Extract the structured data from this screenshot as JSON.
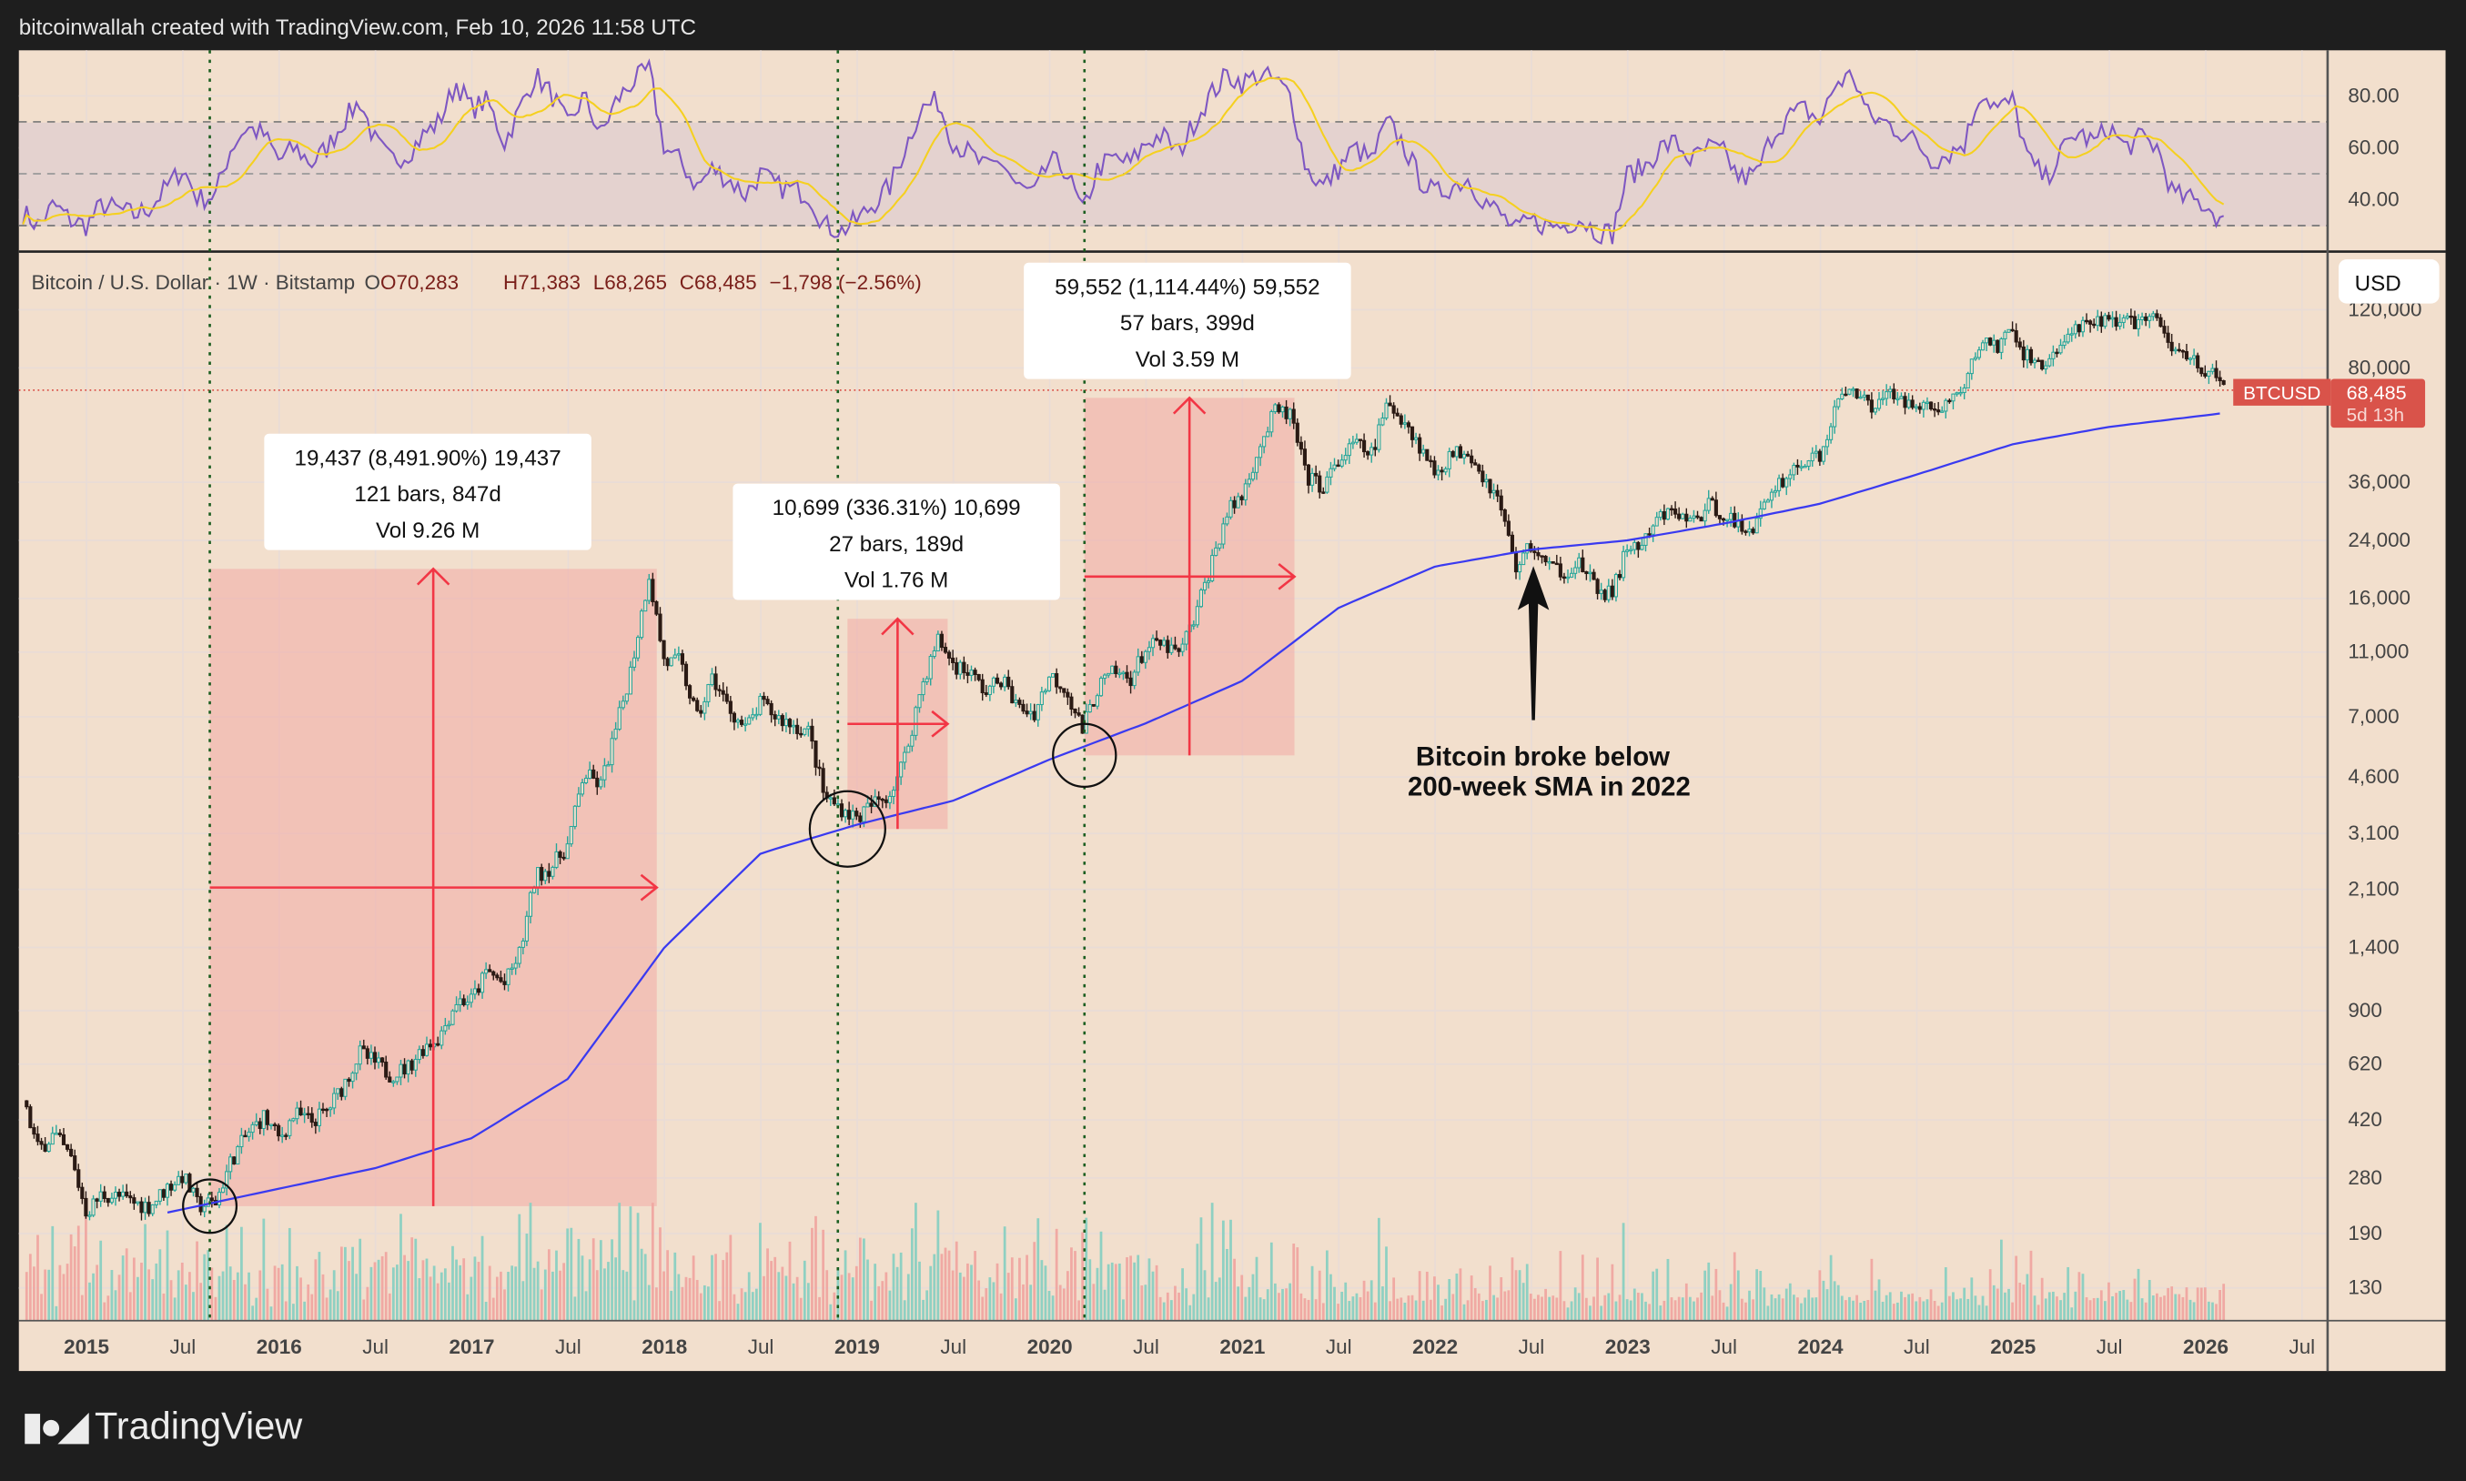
{
  "header": {
    "credit": "bitcoinwallah created with TradingView.com, Feb 10, 2026 11:58 UTC"
  },
  "legend": {
    "symbol": "Bitcoin / U.S. Dollar · 1W · Bitstamp",
    "open": "O70,283",
    "high": "H71,383",
    "low": "L68,265",
    "close": "C68,485",
    "change": "−1,798 (−2.56%)"
  },
  "price_axis": {
    "currency": "USD",
    "ticks": [
      "120,000",
      "80,000",
      "36,000",
      "24,000",
      "16,000",
      "11,000",
      "7,000",
      "4,600",
      "3,100",
      "2,100",
      "1,400",
      "900",
      "620",
      "420",
      "280",
      "190",
      "130"
    ]
  },
  "rsi_axis": {
    "ticks": [
      "80.00",
      "60.00",
      "40.00"
    ]
  },
  "last_price": {
    "ticker": "BTCUSD",
    "price": "68,485",
    "countdown": "5d 13h",
    "color": "#d9534a"
  },
  "time_axis": {
    "labels": [
      {
        "t": 2015,
        "text": "2015",
        "year": true
      },
      {
        "t": 2015.5,
        "text": "Jul"
      },
      {
        "t": 2016,
        "text": "2016",
        "year": true
      },
      {
        "t": 2016.5,
        "text": "Jul"
      },
      {
        "t": 2017,
        "text": "2017",
        "year": true
      },
      {
        "t": 2017.5,
        "text": "Jul"
      },
      {
        "t": 2018,
        "text": "2018",
        "year": true
      },
      {
        "t": 2018.5,
        "text": "Jul"
      },
      {
        "t": 2019,
        "text": "2019",
        "year": true
      },
      {
        "t": 2019.5,
        "text": "Jul"
      },
      {
        "t": 2020,
        "text": "2020",
        "year": true
      },
      {
        "t": 2020.5,
        "text": "Jul"
      },
      {
        "t": 2021,
        "text": "2021",
        "year": true
      },
      {
        "t": 2021.5,
        "text": "Jul"
      },
      {
        "t": 2022,
        "text": "2022",
        "year": true
      },
      {
        "t": 2022.5,
        "text": "Jul"
      },
      {
        "t": 2023,
        "text": "2023",
        "year": true
      },
      {
        "t": 2023.5,
        "text": "Jul"
      },
      {
        "t": 2024,
        "text": "2024",
        "year": true
      },
      {
        "t": 2024.5,
        "text": "Jul"
      },
      {
        "t": 2025,
        "text": "2025",
        "year": true
      },
      {
        "t": 2025.5,
        "text": "Jul"
      },
      {
        "t": 2026,
        "text": "2026",
        "year": true
      },
      {
        "t": 2026.5,
        "text": "Jul"
      }
    ]
  },
  "measurements": [
    {
      "line1": "19,437 (8,491.90%) 19,437",
      "line2": "121 bars, 847d",
      "line3": "Vol 9.26 M",
      "t0": 2015.64,
      "t1": 2017.96,
      "p0": 230,
      "p1": 19666
    },
    {
      "line1": "10,699 (336.31%) 10,699",
      "line2": "27 bars, 189d",
      "line3": "Vol 1.76 M",
      "t0": 2018.95,
      "t1": 2019.47,
      "p0": 3200,
      "p1": 13880
    },
    {
      "line1": "59,552 (1,114.44%) 59,552",
      "line2": "57 bars, 399d",
      "line3": "Vol 3.59 M",
      "t0": 2020.18,
      "t1": 2021.27,
      "p0": 5350,
      "p1": 64900
    }
  ],
  "annotation": {
    "line1": "Bitcoin broke below",
    "line2": "200-week SMA in 2022",
    "arrow_t": 2022.5,
    "arrow_p": 17500
  },
  "vertical_markers": [
    2015.64,
    2018.9,
    2020.18
  ],
  "circles": [
    {
      "t": 2015.64,
      "p": 230
    },
    {
      "t": 2018.95,
      "p": 3200
    },
    {
      "t": 2020.18,
      "p": 5350
    }
  ],
  "branding": {
    "logo": "17",
    "name": "TradingView"
  },
  "colors": {
    "background": "#f2dfcd",
    "up": "#26a69a",
    "down": "#2b1a14",
    "sma": "#3a3af0",
    "rsi": "#7e57c2",
    "rsi_ma": "#f5d020",
    "measure": "#f23645"
  },
  "chart_data": {
    "type": "candlestick",
    "title": "Bitcoin / U.S. Dollar · 1W · Bitstamp",
    "y_scale": "log",
    "ylim": [
      100,
      140000
    ],
    "xlim": [
      "2014-08",
      "2026-09"
    ],
    "grid": true,
    "price": {
      "x": [
        2014.67,
        2014.75,
        2014.83,
        2014.92,
        2015.0,
        2015.08,
        2015.17,
        2015.25,
        2015.33,
        2015.42,
        2015.5,
        2015.58,
        2015.67,
        2015.75,
        2015.83,
        2015.92,
        2016.0,
        2016.08,
        2016.17,
        2016.25,
        2016.33,
        2016.42,
        2016.5,
        2016.58,
        2016.67,
        2016.75,
        2016.83,
        2016.92,
        2017.0,
        2017.08,
        2017.17,
        2017.25,
        2017.33,
        2017.42,
        2017.5,
        2017.58,
        2017.67,
        2017.75,
        2017.83,
        2017.92,
        2017.96,
        2018.0,
        2018.08,
        2018.17,
        2018.25,
        2018.33,
        2018.42,
        2018.5,
        2018.58,
        2018.67,
        2018.75,
        2018.83,
        2018.92,
        2019.0,
        2019.08,
        2019.17,
        2019.25,
        2019.33,
        2019.42,
        2019.5,
        2019.58,
        2019.67,
        2019.75,
        2019.83,
        2019.92,
        2020.0,
        2020.08,
        2020.17,
        2020.25,
        2020.33,
        2020.42,
        2020.5,
        2020.58,
        2020.67,
        2020.75,
        2020.83,
        2020.92,
        2021.0,
        2021.08,
        2021.17,
        2021.25,
        2021.33,
        2021.42,
        2021.5,
        2021.58,
        2021.67,
        2021.75,
        2021.83,
        2021.92,
        2022.0,
        2022.08,
        2022.17,
        2022.25,
        2022.33,
        2022.42,
        2022.5,
        2022.58,
        2022.67,
        2022.75,
        2022.83,
        2022.92,
        2023.0,
        2023.08,
        2023.17,
        2023.25,
        2023.33,
        2023.42,
        2023.5,
        2023.58,
        2023.67,
        2023.75,
        2023.83,
        2023.92,
        2024.0,
        2024.08,
        2024.17,
        2024.25,
        2024.33,
        2024.42,
        2024.5,
        2024.58,
        2024.67,
        2024.75,
        2024.83,
        2024.92,
        2025.0,
        2025.08,
        2025.17,
        2025.25,
        2025.33,
        2025.42,
        2025.5,
        2025.58,
        2025.67,
        2025.75,
        2025.83,
        2025.92,
        2026.0,
        2026.11
      ],
      "close": [
        480,
        340,
        380,
        320,
        220,
        250,
        245,
        235,
        230,
        263,
        285,
        230,
        236,
        315,
        377,
        430,
        368,
        437,
        416,
        448,
        531,
        670,
        624,
        575,
        608,
        700,
        745,
        963,
        970,
        1190,
        1080,
        1350,
        2300,
        2480,
        2870,
        4700,
        4340,
        6450,
        10000,
        19000,
        13800,
        10200,
        10300,
        6900,
        9200,
        7500,
        6400,
        7700,
        7000,
        6600,
        6300,
        4000,
        3700,
        3450,
        3800,
        4100,
        5300,
        8500,
        12000,
        10100,
        9600,
        8300,
        9200,
        7500,
        7200,
        9350,
        8600,
        6400,
        8600,
        9500,
        9200,
        11300,
        11600,
        10800,
        13800,
        19700,
        29000,
        33000,
        45000,
        58800,
        57700,
        37300,
        35000,
        41500,
        47000,
        43800,
        61300,
        57000,
        46300,
        38500,
        43200,
        45500,
        37700,
        31800,
        19900,
        23300,
        20000,
        19400,
        20500,
        17100,
        16500,
        23100,
        23100,
        28400,
        29200,
        27200,
        30400,
        29200,
        25900,
        27000,
        34600,
        37700,
        42200,
        42500,
        61100,
        71300,
        60600,
        67500,
        62700,
        64600,
        58900,
        63300,
        70200,
        96400,
        93400,
        102400,
        84300,
        82500,
        94200,
        104600,
        107100,
        115700,
        108200,
        114000,
        109500,
        90400,
        87500,
        78600,
        68485
      ]
    },
    "sma_200w": {
      "x": [
        2015.42,
        2016.0,
        2016.5,
        2017.0,
        2017.5,
        2018.0,
        2018.5,
        2019.0,
        2019.5,
        2020.0,
        2020.5,
        2021.0,
        2021.5,
        2022.0,
        2022.5,
        2023.0,
        2023.5,
        2024.0,
        2024.5,
        2025.0,
        2025.5,
        2026.11
      ],
      "value": [
        220,
        260,
        300,
        370,
        560,
        1400,
        2700,
        3300,
        3900,
        5200,
        6700,
        9000,
        15000,
        20000,
        22500,
        24000,
        27000,
        31000,
        38000,
        47000,
        53000,
        58500
      ]
    },
    "rsi": {
      "ylim": [
        25,
        95
      ],
      "bands": [
        30,
        50,
        70
      ],
      "x": [
        2014.67,
        2014.75,
        2014.83,
        2014.92,
        2015.0,
        2015.08,
        2015.17,
        2015.25,
        2015.33,
        2015.42,
        2015.5,
        2015.58,
        2015.67,
        2015.75,
        2015.83,
        2015.92,
        2016.0,
        2016.08,
        2016.17,
        2016.25,
        2016.33,
        2016.42,
        2016.5,
        2016.58,
        2016.67,
        2016.75,
        2016.83,
        2016.92,
        2017.0,
        2017.08,
        2017.17,
        2017.25,
        2017.33,
        2017.42,
        2017.5,
        2017.58,
        2017.67,
        2017.75,
        2017.83,
        2017.92,
        2018.0,
        2018.08,
        2018.17,
        2018.25,
        2018.33,
        2018.42,
        2018.5,
        2018.58,
        2018.67,
        2018.75,
        2018.83,
        2018.92,
        2019.0,
        2019.08,
        2019.17,
        2019.25,
        2019.33,
        2019.42,
        2019.5,
        2019.58,
        2019.67,
        2019.75,
        2019.83,
        2019.92,
        2020.0,
        2020.08,
        2020.17,
        2020.25,
        2020.33,
        2020.42,
        2020.5,
        2020.58,
        2020.67,
        2020.75,
        2020.83,
        2020.92,
        2021.0,
        2021.08,
        2021.17,
        2021.25,
        2021.33,
        2021.42,
        2021.5,
        2021.58,
        2021.67,
        2021.75,
        2021.83,
        2021.92,
        2022.0,
        2022.08,
        2022.17,
        2022.25,
        2022.33,
        2022.42,
        2022.5,
        2022.58,
        2022.67,
        2022.75,
        2022.83,
        2022.92,
        2023.0,
        2023.08,
        2023.17,
        2023.25,
        2023.33,
        2023.42,
        2023.5,
        2023.58,
        2023.67,
        2023.75,
        2023.83,
        2023.92,
        2024.0,
        2024.08,
        2024.17,
        2024.25,
        2024.33,
        2024.42,
        2024.5,
        2024.58,
        2024.67,
        2024.75,
        2024.83,
        2024.92,
        2025.0,
        2025.08,
        2025.17,
        2025.25,
        2025.33,
        2025.42,
        2025.5,
        2025.58,
        2025.67,
        2025.75,
        2025.83,
        2025.92,
        2026.0,
        2026.11
      ],
      "value": [
        35,
        30,
        38,
        32,
        30,
        38,
        36,
        34,
        37,
        45,
        52,
        40,
        42,
        60,
        68,
        65,
        55,
        60,
        54,
        60,
        70,
        78,
        62,
        55,
        58,
        65,
        70,
        85,
        75,
        78,
        62,
        75,
        88,
        80,
        68,
        80,
        65,
        78,
        85,
        90,
        60,
        55,
        45,
        52,
        48,
        42,
        50,
        45,
        44,
        42,
        30,
        28,
        32,
        38,
        45,
        60,
        75,
        78,
        62,
        58,
        52,
        55,
        45,
        42,
        55,
        52,
        35,
        52,
        56,
        54,
        62,
        65,
        58,
        70,
        80,
        88,
        85,
        88,
        86,
        80,
        52,
        45,
        52,
        60,
        55,
        70,
        62,
        48,
        42,
        45,
        48,
        40,
        35,
        28,
        32,
        30,
        30,
        33,
        28,
        27,
        50,
        52,
        60,
        62,
        55,
        60,
        58,
        48,
        50,
        65,
        72,
        75,
        70,
        85,
        88,
        72,
        70,
        66,
        62,
        55,
        58,
        62,
        82,
        75,
        78,
        55,
        48,
        58,
        66,
        62,
        68,
        60,
        64,
        60,
        42,
        40,
        38,
        30
      ]
    }
  }
}
